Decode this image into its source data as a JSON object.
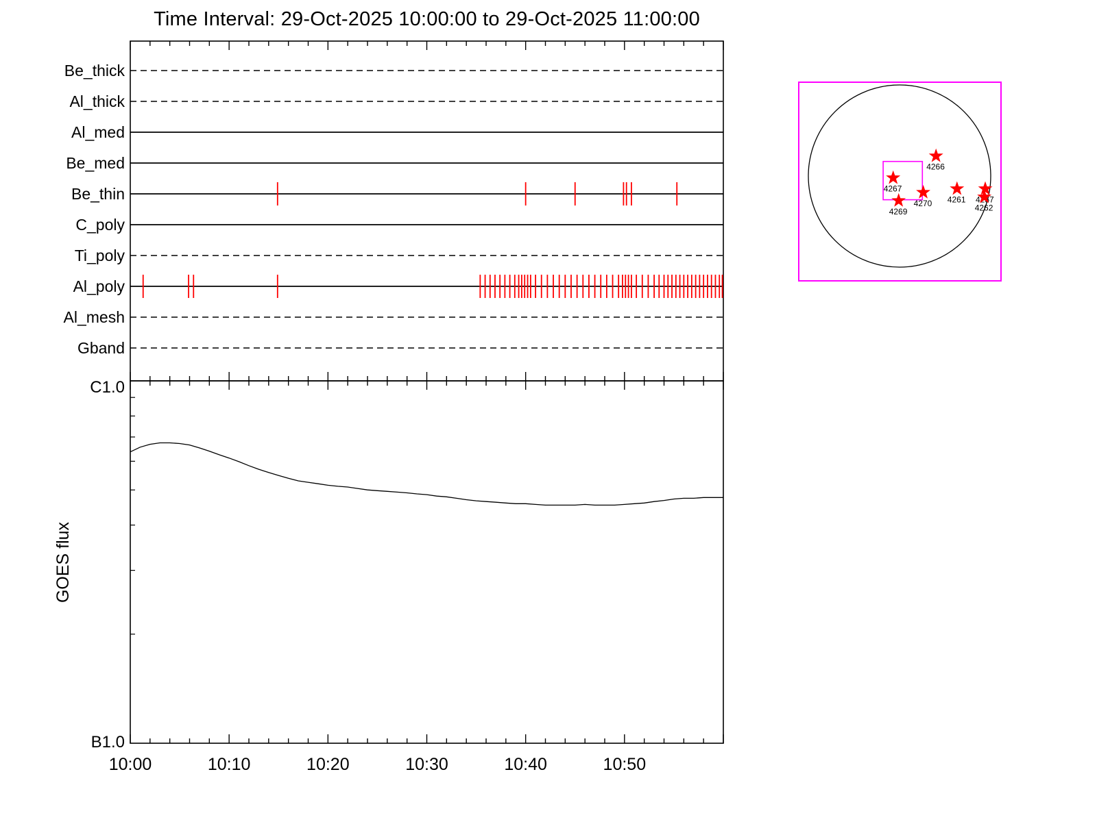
{
  "title": "Time Interval: 29-Oct-2025 10:00:00 to 29-Oct-2025 11:00:00",
  "colors": {
    "axis": "#000000",
    "event_tick": "#ff0000",
    "star": "#ff0000",
    "map_frame": "#ff00ff"
  },
  "chart_data": [
    {
      "type": "scatter",
      "name": "xrt-filter-exposure-timeline",
      "x_range_minutes_after_10_00": [
        0,
        60
      ],
      "x_tick_labels": [
        "10:00",
        "10:10",
        "10:20",
        "10:30",
        "10:40",
        "10:50"
      ],
      "x_minor_tick_every_min": 2,
      "channels": [
        {
          "label": "Be_thick",
          "line_style": "dashed",
          "exposure_times_min": []
        },
        {
          "label": "Al_thick",
          "line_style": "dashed",
          "exposure_times_min": []
        },
        {
          "label": "Al_med",
          "line_style": "solid",
          "exposure_times_min": []
        },
        {
          "label": "Be_med",
          "line_style": "solid",
          "exposure_times_min": []
        },
        {
          "label": "Be_thin",
          "line_style": "solid",
          "exposure_times_min": [
            14.9,
            40.0,
            45.0,
            49.9,
            50.2,
            50.7,
            55.3
          ]
        },
        {
          "label": "C_poly",
          "line_style": "solid",
          "exposure_times_min": []
        },
        {
          "label": "Ti_poly",
          "line_style": "dashed",
          "exposure_times_min": []
        },
        {
          "label": "Al_poly",
          "line_style": "solid",
          "exposure_times_min": [
            1.3,
            5.9,
            6.4,
            14.9,
            35.4,
            35.9,
            36.4,
            36.9,
            37.4,
            37.9,
            38.4,
            38.9,
            39.3,
            39.6,
            39.9,
            40.2,
            40.5,
            41.0,
            41.6,
            42.2,
            42.8,
            43.4,
            44.0,
            44.6,
            45.2,
            45.8,
            46.4,
            47.0,
            47.6,
            48.2,
            48.8,
            49.4,
            49.8,
            50.1,
            50.4,
            50.7,
            51.2,
            51.8,
            52.4,
            53.0,
            53.5,
            54.0,
            54.4,
            54.8,
            55.2,
            55.6,
            56.0,
            56.4,
            56.8,
            57.2,
            57.6,
            58.0,
            58.4,
            58.8,
            59.2,
            59.6,
            59.9
          ]
        },
        {
          "label": "Al_mesh",
          "line_style": "dashed",
          "exposure_times_min": []
        },
        {
          "label": "Gband",
          "line_style": "dashed",
          "exposure_times_min": []
        }
      ]
    },
    {
      "type": "line",
      "name": "goes-flux",
      "ylabel": "GOES flux",
      "y_top_label": "C1.0",
      "y_bottom_label": "B1.0",
      "y_scale": "log",
      "x_minutes": [
        0,
        1,
        2,
        3,
        4,
        5,
        6,
        7,
        8,
        9,
        10,
        11,
        12,
        13,
        14,
        15,
        16,
        17,
        18,
        19,
        20,
        21,
        22,
        23,
        24,
        25,
        26,
        27,
        28,
        29,
        30,
        31,
        32,
        33,
        34,
        35,
        36,
        37,
        38,
        39,
        40,
        41,
        42,
        43,
        44,
        45,
        46,
        47,
        48,
        49,
        50,
        51,
        52,
        53,
        54,
        55,
        56,
        57,
        58,
        59,
        60
      ],
      "y_frac_B1_to_C1": [
        0.804,
        0.817,
        0.825,
        0.829,
        0.829,
        0.827,
        0.823,
        0.815,
        0.806,
        0.796,
        0.787,
        0.777,
        0.766,
        0.756,
        0.747,
        0.739,
        0.731,
        0.724,
        0.72,
        0.716,
        0.712,
        0.709,
        0.707,
        0.703,
        0.699,
        0.697,
        0.695,
        0.693,
        0.691,
        0.688,
        0.686,
        0.682,
        0.68,
        0.676,
        0.672,
        0.669,
        0.667,
        0.665,
        0.663,
        0.661,
        0.661,
        0.659,
        0.657,
        0.657,
        0.657,
        0.657,
        0.659,
        0.657,
        0.657,
        0.657,
        0.659,
        0.661,
        0.663,
        0.667,
        0.67,
        0.674,
        0.676,
        0.676,
        0.678,
        0.678,
        0.678
      ]
    },
    {
      "type": "scatter",
      "name": "solar-disk-active-regions",
      "units": "solar_radii_from_disk_center",
      "regions": [
        {
          "noaa": "4266",
          "x": 0.4,
          "y": -0.22
        },
        {
          "noaa": "4267",
          "x": -0.07,
          "y": 0.02
        },
        {
          "noaa": "4270",
          "x": 0.26,
          "y": 0.18
        },
        {
          "noaa": "4269",
          "x": -0.01,
          "y": 0.27
        },
        {
          "noaa": "4261",
          "x": 0.63,
          "y": 0.14
        },
        {
          "noaa": "4257",
          "x": 0.94,
          "y": 0.14
        },
        {
          "noaa": "4262",
          "x": 0.93,
          "y": 0.23
        }
      ],
      "fov_box": {
        "x1": -0.18,
        "y1": -0.16,
        "x2": 0.25,
        "y2": 0.26
      }
    }
  ]
}
